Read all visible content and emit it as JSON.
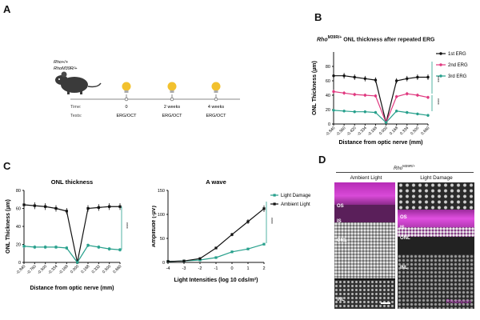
{
  "panels": {
    "A": {
      "letter": "A",
      "genotype_1": "Rho+/+",
      "genotype_2": "RhoM39R/+",
      "time_label": "Time:",
      "tests_label": "Tests:",
      "timepoints": [
        {
          "time": "0",
          "test": "ERG/OCT"
        },
        {
          "time": "2 weeks",
          "test": "ERG/OCT"
        },
        {
          "time": "4 weeks",
          "test": "ERG/OCT"
        }
      ]
    },
    "B": {
      "letter": "B",
      "title_italic": "Rho",
      "title_sup": "M39R/+",
      "title_rest": " ONL  thickness after repeated ERG",
      "significance": [
        "****",
        "****"
      ]
    },
    "C": {
      "letter": "C",
      "significance_left": "****",
      "significance_right": "****"
    },
    "D": {
      "letter": "D",
      "header_italic": "Rho",
      "header_sup": "M39R/+",
      "col_left": "Ambient Light",
      "col_right": "Light Damage",
      "left_labels": [
        "OS",
        "IS",
        "ONL",
        "INL"
      ],
      "right_labels": [
        "OS",
        "IS",
        "ONL",
        "INL"
      ],
      "stain_label": "Rhodopsin",
      "colors": {
        "rhodopsin": "#d23bd6",
        "nuclei": "#e6e6e6"
      }
    }
  },
  "chart_data": [
    {
      "id": "B",
      "type": "line",
      "title": "RhoM39R/+ ONL thickness after repeated ERG",
      "xlabel": "Distance from optic nerve (mm)",
      "ylabel": "ONL Thickness (µm)",
      "ylim": [
        0,
        100
      ],
      "yticks": [
        0,
        20,
        40,
        60,
        80
      ],
      "categories": [
        "-0.840",
        "-0.560",
        "-0.420",
        "-0.334",
        "-0.168",
        "0.000",
        "0.168",
        "0.334",
        "0.500",
        "0.660"
      ],
      "series": [
        {
          "name": "1st ERG",
          "color": "#111111",
          "values": [
            67,
            67,
            65,
            63,
            61,
            2,
            60,
            63,
            65,
            65
          ]
        },
        {
          "name": "2nd ERG",
          "color": "#e0387f",
          "values": [
            45,
            43,
            41,
            40,
            39,
            2,
            38,
            42,
            40,
            37
          ]
        },
        {
          "name": "3rd ERG",
          "color": "#27a08c",
          "values": [
            19,
            18,
            17,
            17,
            16,
            2,
            18,
            16,
            14,
            12
          ]
        }
      ],
      "legend": "top-right"
    },
    {
      "id": "C-left",
      "type": "line",
      "title": "ONL thickness",
      "xlabel": "Distance from optic nerve (mm)",
      "ylabel": "ONL Thickness (µm)",
      "ylim": [
        0,
        80
      ],
      "yticks": [
        0,
        20,
        40,
        60,
        80
      ],
      "categories": [
        "-0.840",
        "-0.760",
        "-0.500",
        "-0.334",
        "-0.168",
        "0.000",
        "0.168",
        "0.332",
        "0.500",
        "0.660"
      ],
      "series": [
        {
          "name": "Ambient Light",
          "color": "#111111",
          "values": [
            64,
            63,
            62,
            60,
            57,
            0,
            60,
            61,
            62,
            62
          ]
        },
        {
          "name": "Light Damage",
          "color": "#27a08c",
          "values": [
            18,
            17,
            17,
            17,
            16,
            0,
            19,
            17,
            15,
            14
          ]
        }
      ]
    },
    {
      "id": "C-right",
      "type": "line",
      "title": "A wave",
      "xlabel": "Light Intensities (log 10 cds/m²)",
      "ylabel": "Amplitude (-µV)",
      "ylim": [
        0,
        150
      ],
      "yticks": [
        0,
        50,
        100,
        150
      ],
      "x": [
        -4,
        -3,
        -2,
        -1,
        0,
        1,
        2
      ],
      "xticks": [
        "-4",
        "-3",
        "-2",
        "-1",
        "0",
        "1",
        "2"
      ],
      "series": [
        {
          "name": "Light Damage",
          "color": "#27a08c",
          "values": [
            2,
            3,
            5,
            10,
            22,
            28,
            38
          ]
        },
        {
          "name": "Ambient Light",
          "color": "#111111",
          "values": [
            2,
            3,
            8,
            30,
            58,
            85,
            112
          ]
        }
      ],
      "legend": "top-left-outside"
    }
  ]
}
